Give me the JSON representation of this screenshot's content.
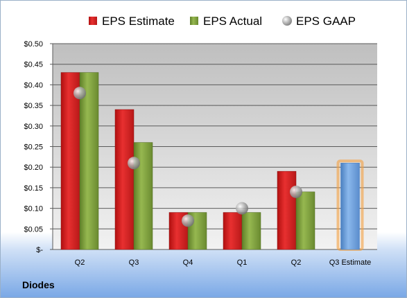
{
  "company": "Diodes",
  "colors": {
    "estimate": "#d42020",
    "actual": "#80a040",
    "gaap": "#a0a0a0",
    "next_estimate": "#6a9fdc",
    "next_estimate_glow": "#f5a040"
  },
  "chart_data": {
    "type": "bar",
    "title": "",
    "xlabel": "",
    "ylabel": "",
    "ylim": [
      0,
      0.5
    ],
    "y_ticks": [
      "$-",
      "$0.05",
      "$0.10",
      "$0.15",
      "$0.20",
      "$0.25",
      "$0.30",
      "$0.35",
      "$0.40",
      "$0.45",
      "$0.50"
    ],
    "categories": [
      "Q2",
      "Q3",
      "Q4",
      "Q1",
      "Q2",
      "Q3 Estimate"
    ],
    "series": [
      {
        "name": "EPS Estimate",
        "values": [
          0.43,
          0.34,
          0.09,
          0.09,
          0.19,
          0.21
        ]
      },
      {
        "name": "EPS Actual",
        "values": [
          0.43,
          0.26,
          0.09,
          0.09,
          0.14,
          null
        ]
      },
      {
        "name": "EPS GAAP",
        "values": [
          0.38,
          0.21,
          0.07,
          0.1,
          0.14,
          null
        ]
      }
    ],
    "legend": [
      "EPS Estimate",
      "EPS Actual",
      "EPS GAAP"
    ],
    "legend_position": "top",
    "grid": true
  }
}
